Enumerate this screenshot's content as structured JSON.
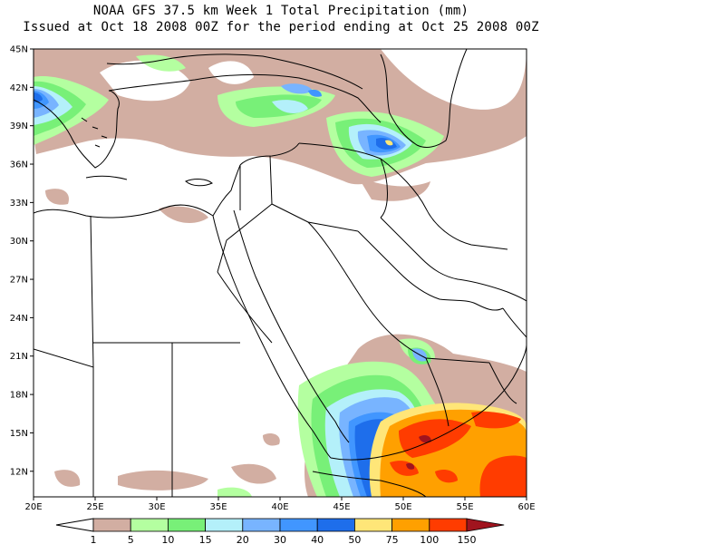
{
  "title": {
    "line1": "NOAA GFS 37.5 km Week 1 Total Precipitation (mm)",
    "line2": "Issued at Oct 18 2008 00Z for the period ending at Oct 25 2008 00Z"
  },
  "axes": {
    "lat_labels": [
      "45N",
      "42N",
      "39N",
      "36N",
      "33N",
      "30N",
      "27N",
      "24N",
      "21N",
      "18N",
      "15N",
      "12N"
    ],
    "lat_values": [
      45,
      42,
      39,
      36,
      33,
      30,
      27,
      24,
      21,
      18,
      15,
      12
    ],
    "lon_labels": [
      "20E",
      "25E",
      "30E",
      "35E",
      "40E",
      "45E",
      "50E",
      "55E",
      "60E"
    ],
    "lon_values": [
      20,
      25,
      30,
      35,
      40,
      45,
      50,
      55,
      60
    ],
    "lat_range": [
      10,
      45
    ],
    "lon_range": [
      20,
      60
    ]
  },
  "colorbar": {
    "labels": [
      "1",
      "5",
      "10",
      "15",
      "20",
      "30",
      "40",
      "50",
      "75",
      "100",
      "150"
    ],
    "colors": [
      "#d2aea2",
      "#b4ffa0",
      "#78f078",
      "#b4f0fa",
      "#78b4ff",
      "#4196ff",
      "#1e6eeb",
      "#ffe678",
      "#ffa000",
      "#ff3c00",
      "#a0141e"
    ],
    "extension_low_color": "#ffffff"
  }
}
